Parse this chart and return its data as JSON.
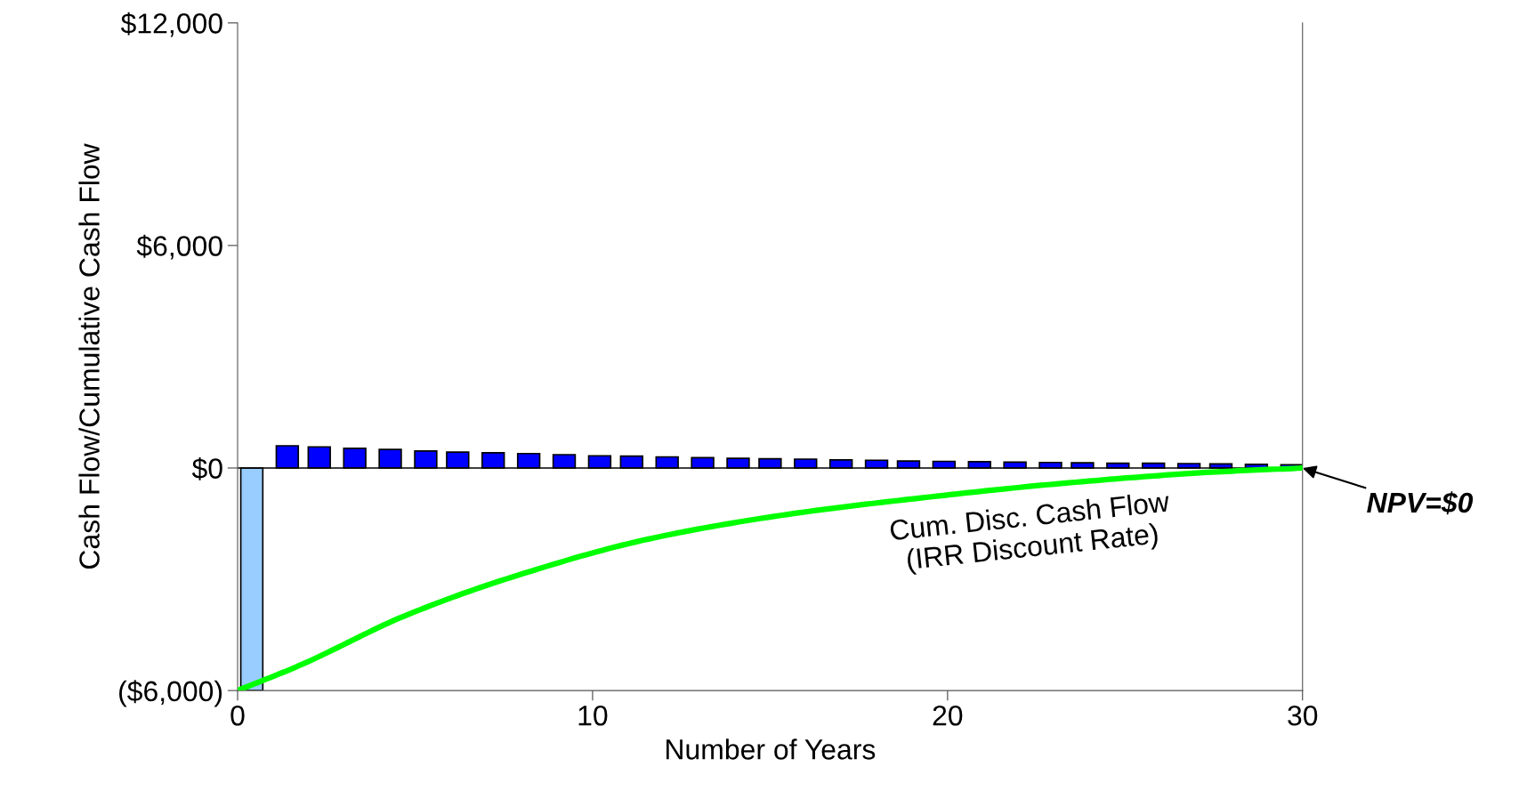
{
  "chart_data": {
    "type": "bar",
    "xlabel": "Number of Years",
    "ylabel": "Cash Flow/Cumulative Cash Flow",
    "xlim": [
      0,
      30
    ],
    "xticks": [
      0,
      10,
      20,
      30
    ],
    "ylim": [
      -6000,
      12000
    ],
    "yticks": [
      {
        "value": -6000,
        "label": "($6,000)"
      },
      {
        "value": 0,
        "label": "$0"
      },
      {
        "value": 6000,
        "label": "$6,000"
      },
      {
        "value": 12000,
        "label": "$12,000"
      }
    ],
    "grid": false,
    "legend": false,
    "series": [
      {
        "x": [
          0.4,
          1.4,
          2.3,
          3.3,
          4.3,
          5.3,
          6.2,
          7.2,
          8.2,
          9.2,
          10.2,
          11.1,
          12.1,
          13.1,
          14.1,
          15.0,
          16.0,
          17.0,
          18.0,
          18.9,
          19.9,
          20.9,
          21.9,
          22.9,
          23.8,
          24.8,
          25.8,
          26.8,
          27.7,
          28.7,
          29.7
        ],
        "values": [
          -6000,
          600,
          570,
          530,
          500,
          460,
          430,
          410,
          390,
          360,
          330,
          320,
          300,
          280,
          260,
          250,
          240,
          220,
          210,
          190,
          180,
          170,
          160,
          150,
          140,
          130,
          130,
          120,
          110,
          100,
          90
        ],
        "colors": [
          "#99ccff",
          "#0000ff",
          "#0000ff",
          "#0000ff",
          "#0000ff",
          "#0000ff",
          "#0000ff",
          "#0000ff",
          "#0000ff",
          "#0000ff",
          "#0000ff",
          "#0000ff",
          "#0000ff",
          "#0000ff",
          "#0000ff",
          "#0000ff",
          "#0000ff",
          "#0000ff",
          "#0000ff",
          "#0000ff",
          "#0000ff",
          "#0000ff",
          "#0000ff",
          "#0000ff",
          "#0000ff",
          "#0000ff",
          "#0000ff",
          "#0000ff",
          "#0000ff",
          "#0000ff",
          "#0000ff"
        ]
      },
      {
        "type": "line",
        "color": "#00ff00",
        "x": [
          0,
          1.8,
          4.7,
          7.7,
          11.6,
          15.5,
          19.5,
          23.4,
          27.3,
          30
        ],
        "values": [
          -6000,
          -5300,
          -3990,
          -2950,
          -1910,
          -1250,
          -780,
          -400,
          -120,
          0
        ]
      }
    ],
    "ref_lines": [
      {
        "axis": "y",
        "value": 0,
        "color": "#000000"
      }
    ],
    "annotations": [
      "Cum. Disc. Cash Flow\n(IRR Discount Rate)",
      {
        "text": "NPV=$0",
        "x": 30,
        "y": 0
      }
    ]
  }
}
